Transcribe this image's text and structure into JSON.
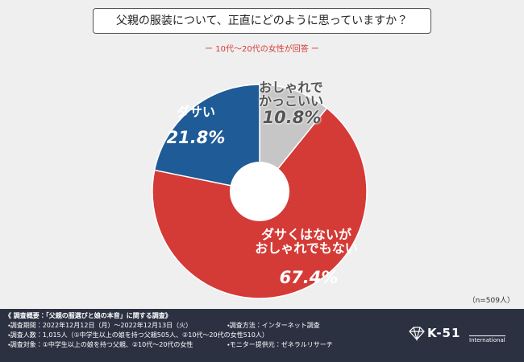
{
  "chart_data": {
    "type": "pie",
    "title": "父親の服装について、正直にどのように思っていますか？",
    "subtitle": "ー 10代〜20代の女性が回答 ー",
    "categories": [
      "おしゃれで\nかっこいい",
      "ダサくはないが\nおしゃれでもない",
      "ダサい"
    ],
    "values": [
      10.8,
      67.4,
      21.8
    ],
    "value_labels": [
      "10.8%",
      "67.4%",
      "21.8%"
    ],
    "colors": [
      "#c6c6c6",
      "#d43b36",
      "#1e5b97"
    ],
    "note": "（n=509人）"
  },
  "footer": {
    "heading": "《 調査概要：「父親の服選びと娘の本音」に関する調査》",
    "items": [
      "・調査期間：2022年12月12日（月）〜2022年12月13日（火）",
      "・調査方法：インターネット調査",
      "・調査人数：1,015人（①中学生以上の娘を持つ父親505人、②10代〜20代の女性510人）",
      "・調査対象：①中学生以上の娘を持つ父親、②10代〜20代の女性",
      "・モニター提供元：ゼネラルリサーチ"
    ],
    "logo": "K-51",
    "logo_sub": "International"
  }
}
